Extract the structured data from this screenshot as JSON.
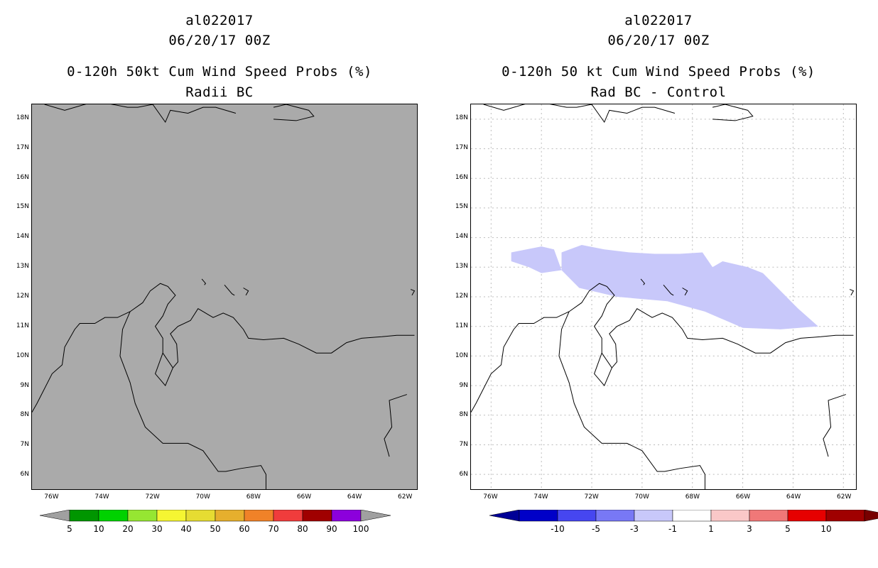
{
  "panels": [
    {
      "id": "left",
      "storm_id": "al022017",
      "datetime": "06/20/17 00Z",
      "title_line1": "0-120h 50kt Cum Wind Speed Probs (%)",
      "title_line2": "Radii BC",
      "background_color": "#aaaaaa",
      "gridlines": false,
      "colorbar": {
        "colors": [
          "#009600",
          "#00d200",
          "#96e632",
          "#f5f532",
          "#e6dc32",
          "#e6af2d",
          "#f08228",
          "#f03c3c",
          "#a00000",
          "#8c00dc"
        ],
        "labels": [
          "5",
          "10",
          "20",
          "30",
          "40",
          "50",
          "60",
          "70",
          "80",
          "90",
          "100"
        ],
        "end_color": "#a0a0a0"
      }
    },
    {
      "id": "right",
      "storm_id": "al022017",
      "datetime": "06/20/17 00Z",
      "title_line1": "0-120h 50 kt Cum Wind Speed Probs (%)",
      "title_line2": "Rad BC - Control",
      "background_color": "#ffffff",
      "gridlines": true,
      "shaded_region": {
        "color": "#c8c8fa",
        "range": "-3 to -1",
        "polygon_lonlat": [
          [
            -75.2,
            13.5
          ],
          [
            -74,
            13.7
          ],
          [
            -73.5,
            13.6
          ],
          [
            -73.2,
            12.9
          ],
          [
            -74,
            12.8
          ],
          [
            -74.5,
            13
          ],
          [
            -75.2,
            13.2
          ]
        ],
        "polygon2_lonlat": [
          [
            -73.2,
            13.5
          ],
          [
            -72.4,
            13.75
          ],
          [
            -71.5,
            13.6
          ],
          [
            -70.5,
            13.5
          ],
          [
            -69.5,
            13.45
          ],
          [
            -68.5,
            13.45
          ],
          [
            -67.6,
            13.5
          ],
          [
            -67.2,
            13
          ],
          [
            -66.8,
            13.2
          ],
          [
            -65.8,
            13.0
          ],
          [
            -65.2,
            12.8
          ],
          [
            -64.5,
            12.2
          ],
          [
            -63.8,
            11.6
          ],
          [
            -63.0,
            11.0
          ],
          [
            -64.5,
            10.9
          ],
          [
            -66.0,
            10.95
          ],
          [
            -67.5,
            11.5
          ],
          [
            -69.0,
            11.85
          ],
          [
            -71.0,
            12.0
          ],
          [
            -72.5,
            12.3
          ],
          [
            -73.2,
            12.9
          ]
        ]
      },
      "colorbar": {
        "colors": [
          "#0000c8",
          "#4646f0",
          "#7878f5",
          "#c8c8fa",
          "#ffffff",
          "#fac8c8",
          "#f07878",
          "#e60000",
          "#a00000"
        ],
        "labels": [
          "-10",
          "-5",
          "-3",
          "-1",
          "1",
          "3",
          "5",
          "10"
        ],
        "start_color": "#000096",
        "end_color": "#780000"
      }
    }
  ],
  "axes": {
    "y_labels": [
      "18N",
      "17N",
      "16N",
      "15N",
      "14N",
      "13N",
      "12N",
      "11N",
      "10N",
      "9N",
      "8N",
      "7N",
      "6N"
    ],
    "y_values": [
      18,
      17,
      16,
      15,
      14,
      13,
      12,
      11,
      10,
      9,
      8,
      7,
      6
    ],
    "x_labels": [
      "76W",
      "74W",
      "72W",
      "70W",
      "68W",
      "66W",
      "64W",
      "62W"
    ],
    "x_values": [
      -76,
      -74,
      -72,
      -70,
      -68,
      -66,
      -64,
      -62
    ],
    "lon_range": [
      -76.8,
      -61.5
    ],
    "lat_range": [
      5.5,
      18.5
    ]
  }
}
